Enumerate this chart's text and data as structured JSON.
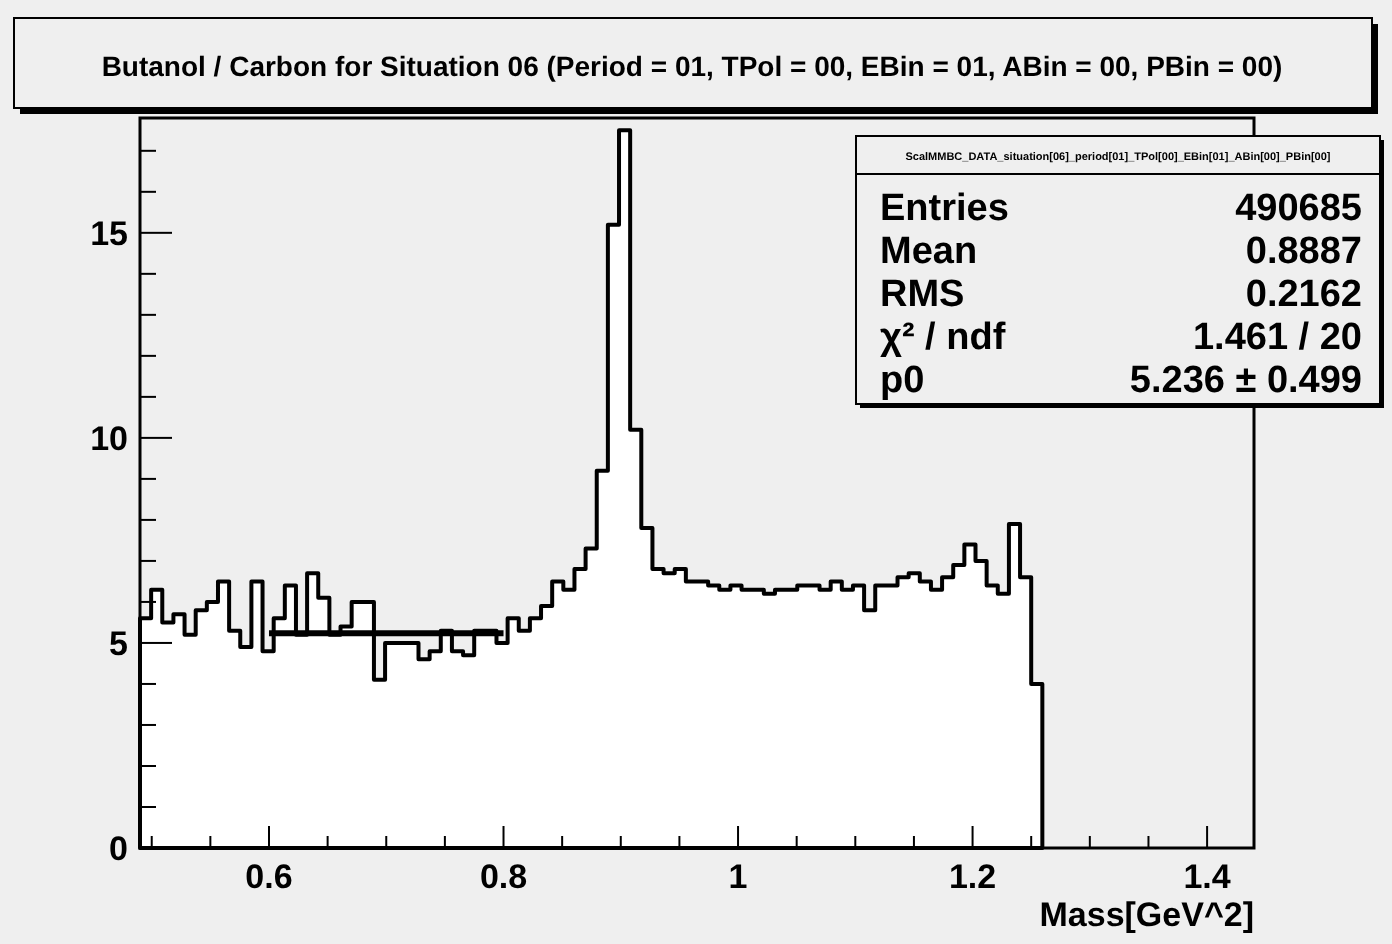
{
  "chart_data": {
    "type": "histogram",
    "title": "Butanol / Carbon for Situation 06 (Period = 01, TPol = 00, EBin = 01, ABin = 00, PBin = 00)",
    "xlabel": "Mass[GeV^2]",
    "bins": [
      0.49,
      0.4995,
      0.509,
      0.5185,
      0.528,
      0.5375,
      0.547,
      0.5565,
      0.566,
      0.5755,
      0.585,
      0.5945,
      0.604,
      0.6135,
      0.623,
      0.6325,
      0.642,
      0.6515,
      0.661,
      0.6705,
      0.68,
      0.6895,
      0.699,
      0.7085,
      0.718,
      0.7275,
      0.737,
      0.7465,
      0.756,
      0.7655,
      0.775,
      0.7845,
      0.794,
      0.8035,
      0.813,
      0.8225,
      0.832,
      0.8415,
      0.851,
      0.8605,
      0.87,
      0.8795,
      0.889,
      0.8985,
      0.908,
      0.9175,
      0.927,
      0.9365,
      0.946,
      0.9555,
      0.965,
      0.9745,
      0.984,
      0.9935,
      1.003,
      1.0125,
      1.022,
      1.0315,
      1.041,
      1.0505,
      1.06,
      1.0695,
      1.079,
      1.0885,
      1.098,
      1.1075,
      1.117,
      1.1265,
      1.136,
      1.1455,
      1.155,
      1.1645,
      1.174,
      1.1835,
      1.193,
      1.2025,
      1.212,
      1.2215,
      1.231,
      1.2405,
      1.25,
      1.2595
    ],
    "values": [
      5.6,
      6.3,
      5.5,
      5.7,
      5.2,
      5.8,
      6.0,
      6.5,
      5.3,
      4.9,
      6.5,
      4.8,
      5.6,
      6.4,
      5.2,
      6.7,
      6.1,
      5.2,
      5.4,
      6.0,
      6.0,
      4.1,
      5.0,
      5.0,
      5.0,
      4.6,
      4.8,
      5.3,
      4.8,
      4.7,
      5.3,
      5.3,
      5.0,
      5.6,
      5.3,
      5.6,
      5.9,
      6.5,
      6.3,
      6.8,
      7.3,
      9.2,
      15.2,
      17.5,
      10.2,
      7.8,
      6.8,
      6.7,
      6.8,
      6.5,
      6.5,
      6.4,
      6.3,
      6.4,
      6.3,
      6.3,
      6.2,
      6.3,
      6.3,
      6.4,
      6.4,
      6.3,
      6.5,
      6.3,
      6.4,
      5.8,
      6.4,
      6.4,
      6.6,
      6.7,
      6.5,
      6.3,
      6.6,
      6.9,
      7.4,
      7.0,
      6.4,
      6.2,
      7.9,
      6.6,
      4.0
    ],
    "color": "#ffffff",
    "series": [
      {
        "type": "line",
        "x": [
          0.6,
          0.8
        ],
        "values": [
          5.236,
          5.236
        ],
        "color": "#000000"
      }
    ],
    "xlim": [
      0.49,
      1.44
    ],
    "xticks": [
      {
        "value": 0.5,
        "label": null
      },
      {
        "value": 0.55,
        "label": null
      },
      0.6,
      {
        "value": 0.65,
        "label": null
      },
      {
        "value": 0.7,
        "label": null
      },
      {
        "value": 0.75,
        "label": null
      },
      0.8,
      {
        "value": 0.85,
        "label": null
      },
      {
        "value": 0.9,
        "label": null
      },
      {
        "value": 0.95,
        "label": null
      },
      1,
      {
        "value": 1.05,
        "label": null
      },
      {
        "value": 1.1,
        "label": null
      },
      {
        "value": 1.15,
        "label": null
      },
      1.2,
      {
        "value": 1.25,
        "label": null
      },
      {
        "value": 1.3,
        "label": null
      },
      {
        "value": 1.35,
        "label": null
      },
      1.4
    ],
    "ylim": [
      0,
      17.8
    ],
    "yticks": [
      0,
      {
        "value": 1,
        "label": null
      },
      {
        "value": 2,
        "label": null
      },
      {
        "value": 3,
        "label": null
      },
      {
        "value": 4,
        "label": null
      },
      5,
      {
        "value": 6,
        "label": null
      },
      {
        "value": 7,
        "label": null
      },
      {
        "value": 8,
        "label": null
      },
      {
        "value": 9,
        "label": null
      },
      10,
      {
        "value": 11,
        "label": null
      },
      {
        "value": 12,
        "label": null
      },
      {
        "value": 13,
        "label": null
      },
      {
        "value": 14,
        "label": null
      },
      15,
      {
        "value": 16,
        "label": null
      },
      {
        "value": 17,
        "label": null
      }
    ],
    "annotations": [
      "ScalMMBC_DATA_situation[06]_period[01]_TPol[00]_EBin[01]_ABin[00]_PBin[00]",
      "Entries",
      "490685",
      "Mean",
      "0.8887",
      "RMS",
      "0.2162",
      "χ² / ndf",
      "1.461 / 20",
      "p0",
      "5.236 ± 0.499"
    ]
  }
}
